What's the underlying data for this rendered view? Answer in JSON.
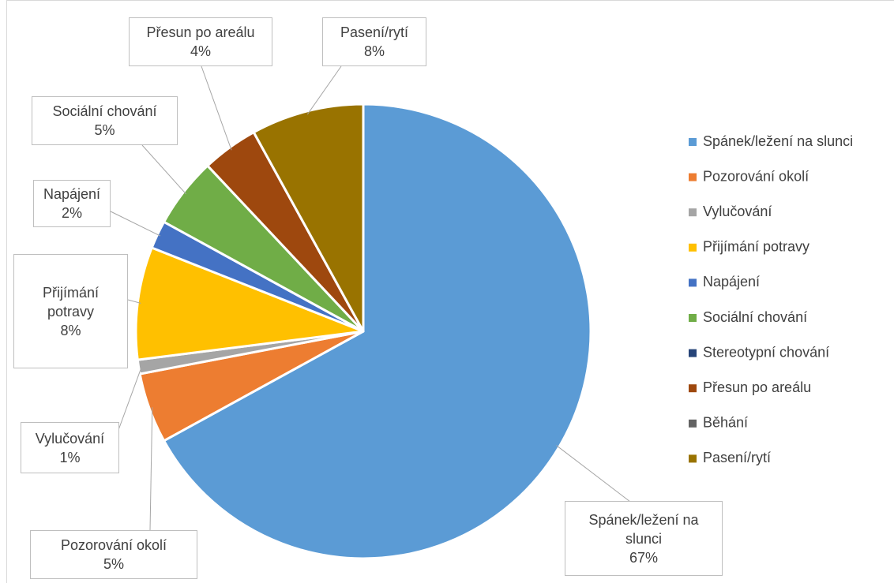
{
  "chart_data": {
    "type": "pie",
    "categories": [
      "Spánek/ležení na slunci",
      "Pozorování okolí",
      "Vylučování",
      "Přijímání potravy",
      "Napájení",
      "Sociální chování",
      "Stereotypní chování",
      "Přesun po areálu",
      "Běhání",
      "Pasení/rytí"
    ],
    "values": [
      67,
      5,
      1,
      8,
      2,
      5,
      0,
      4,
      0,
      8
    ],
    "value_labels": [
      "67%",
      "5%",
      "1%",
      "8%",
      "2%",
      "5%",
      null,
      "4%",
      null,
      "8%"
    ],
    "colors": [
      "#5b9bd5",
      "#ed7d31",
      "#a5a5a5",
      "#ffc000",
      "#4472c4",
      "#70ad47",
      "#264478",
      "#9e480e",
      "#636363",
      "#997300"
    ],
    "legend": "right"
  }
}
